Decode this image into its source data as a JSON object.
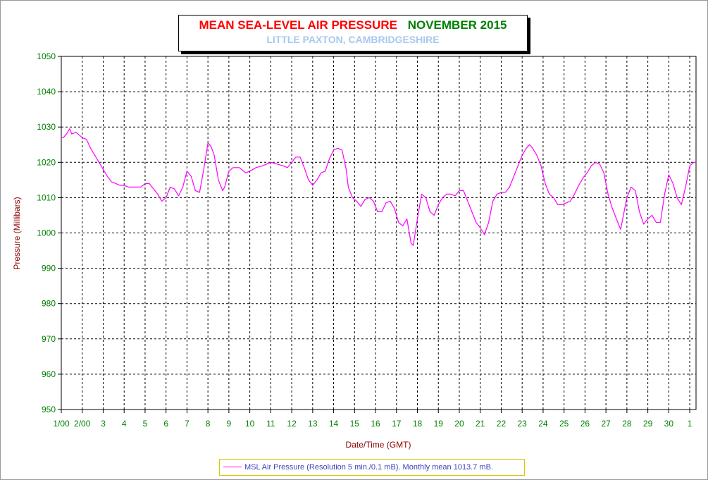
{
  "title": {
    "main": "MEAN SEA-LEVEL AIR PRESSURE",
    "month": "NOVEMBER 2015",
    "subtitle": "LITTLE PAXTON, CAMBRIDGESHIRE"
  },
  "legend": {
    "label": "MSL Air Pressure (Resolution 5 min./0.1 mB). Monthly mean 1013.7 mB."
  },
  "colors": {
    "series": "#ff00ff",
    "tick_labels": "#008000",
    "axis_titles": "#8b0000",
    "title": "#ff0000",
    "subtitle": "#a6c8f0",
    "legend_text": "#4040c0"
  },
  "chart_data": {
    "type": "line",
    "xlabel": "Date/Time (GMT)",
    "ylabel": "Pressure (Millibars)",
    "ylim": [
      950,
      1050
    ],
    "xlim": [
      1.0,
      31.3
    ],
    "grid": true,
    "legend_position": "bottom",
    "y_ticks": [
      1050,
      1040,
      1030,
      1020,
      1010,
      1000,
      990,
      980,
      970,
      960,
      950
    ],
    "x_ticks": [
      {
        "x": 1,
        "label": "1/00"
      },
      {
        "x": 2,
        "label": "2/00"
      },
      {
        "x": 3,
        "label": "3"
      },
      {
        "x": 4,
        "label": "4"
      },
      {
        "x": 5,
        "label": "5"
      },
      {
        "x": 6,
        "label": "6"
      },
      {
        "x": 7,
        "label": "7"
      },
      {
        "x": 8,
        "label": "8"
      },
      {
        "x": 9,
        "label": "9"
      },
      {
        "x": 10,
        "label": "10"
      },
      {
        "x": 11,
        "label": "11"
      },
      {
        "x": 12,
        "label": "12"
      },
      {
        "x": 13,
        "label": "13"
      },
      {
        "x": 14,
        "label": "14"
      },
      {
        "x": 15,
        "label": "15"
      },
      {
        "x": 16,
        "label": "16"
      },
      {
        "x": 17,
        "label": "17"
      },
      {
        "x": 18,
        "label": "18"
      },
      {
        "x": 19,
        "label": "19"
      },
      {
        "x": 20,
        "label": "20"
      },
      {
        "x": 21,
        "label": "21"
      },
      {
        "x": 22,
        "label": "22"
      },
      {
        "x": 23,
        "label": "23"
      },
      {
        "x": 24,
        "label": "24"
      },
      {
        "x": 25,
        "label": "25"
      },
      {
        "x": 26,
        "label": "26"
      },
      {
        "x": 27,
        "label": "27"
      },
      {
        "x": 28,
        "label": "28"
      },
      {
        "x": 29,
        "label": "29"
      },
      {
        "x": 30,
        "label": "30"
      },
      {
        "x": 31,
        "label": "1"
      }
    ],
    "series": [
      {
        "name": "MSL Air Pressure",
        "x": [
          1.0,
          1.1,
          1.25,
          1.4,
          1.5,
          1.7,
          1.9,
          2.0,
          2.2,
          2.4,
          2.6,
          2.8,
          3.0,
          3.2,
          3.4,
          3.6,
          3.8,
          4.0,
          4.2,
          4.5,
          4.8,
          5.0,
          5.2,
          5.4,
          5.6,
          5.8,
          6.0,
          6.2,
          6.4,
          6.6,
          6.8,
          7.0,
          7.2,
          7.4,
          7.6,
          7.8,
          8.0,
          8.15,
          8.3,
          8.5,
          8.7,
          8.8,
          9.0,
          9.2,
          9.5,
          9.8,
          10.0,
          10.3,
          10.6,
          11.0,
          11.3,
          11.6,
          11.8,
          12.0,
          12.2,
          12.4,
          12.6,
          12.8,
          13.0,
          13.2,
          13.4,
          13.6,
          13.8,
          14.0,
          14.2,
          14.4,
          14.6,
          14.7,
          14.9,
          15.1,
          15.3,
          15.5,
          15.7,
          15.9,
          16.1,
          16.3,
          16.5,
          16.7,
          16.9,
          17.1,
          17.3,
          17.5,
          17.7,
          17.8,
          18.0,
          18.2,
          18.4,
          18.6,
          18.8,
          19.0,
          19.2,
          19.4,
          19.6,
          19.8,
          20.0,
          20.2,
          20.4,
          20.6,
          20.8,
          21.0,
          21.2,
          21.4,
          21.6,
          21.8,
          22.0,
          22.2,
          22.4,
          22.6,
          22.8,
          23.0,
          23.2,
          23.35,
          23.5,
          23.7,
          23.9,
          24.1,
          24.3,
          24.5,
          24.7,
          24.9,
          25.1,
          25.3,
          25.5,
          25.7,
          25.9,
          26.1,
          26.3,
          26.5,
          26.7,
          26.9,
          27.1,
          27.3,
          27.5,
          27.7,
          27.8,
          28.0,
          28.2,
          28.4,
          28.6,
          28.8,
          29.0,
          29.2,
          29.4,
          29.6,
          29.8,
          30.0,
          30.2,
          30.4,
          30.6,
          30.8,
          31.0,
          31.2,
          31.3
        ],
        "y": [
          1027,
          1027,
          1028,
          1029.5,
          1028,
          1028.5,
          1027.5,
          1027,
          1026.5,
          1024,
          1022,
          1020,
          1018,
          1016,
          1014.5,
          1014,
          1013.5,
          1013.5,
          1013,
          1013,
          1013,
          1014,
          1014,
          1012.5,
          1011,
          1009,
          1010,
          1013,
          1012.5,
          1010.5,
          1013,
          1017.5,
          1016,
          1012,
          1011.5,
          1018,
          1025.5,
          1024.5,
          1022,
          1015,
          1012,
          1013,
          1017.5,
          1018.5,
          1018.5,
          1017,
          1017.5,
          1018.5,
          1019,
          1020,
          1019.5,
          1019,
          1018.5,
          1020,
          1021.5,
          1021.5,
          1018.5,
          1015,
          1013.5,
          1015,
          1017,
          1017.5,
          1021,
          1023.5,
          1024,
          1023.5,
          1018,
          1013,
          1010,
          1009,
          1007.5,
          1009.5,
          1010,
          1009,
          1006,
          1006,
          1008.5,
          1009,
          1007,
          1003,
          1002,
          1004,
          997,
          996.5,
          1004,
          1011,
          1010,
          1006,
          1005,
          1008,
          1010,
          1011,
          1011,
          1010.5,
          1012,
          1012,
          1009,
          1006,
          1003,
          1001.5,
          999.5,
          1003,
          1009,
          1011,
          1011.5,
          1011.5,
          1013,
          1016,
          1019,
          1022,
          1024,
          1025,
          1024,
          1022,
          1019,
          1014,
          1011,
          1010,
          1008,
          1008,
          1008.5,
          1009,
          1011,
          1013.5,
          1015.5,
          1017,
          1019,
          1020,
          1019.5,
          1017,
          1011,
          1007,
          1004,
          1001,
          1004,
          1010,
          1013,
          1012,
          1006,
          1002.5,
          1004,
          1005,
          1003,
          1003,
          1011,
          1016.5,
          1014,
          1010,
          1008,
          1013,
          1019,
          1020,
          1020
        ]
      }
    ]
  }
}
